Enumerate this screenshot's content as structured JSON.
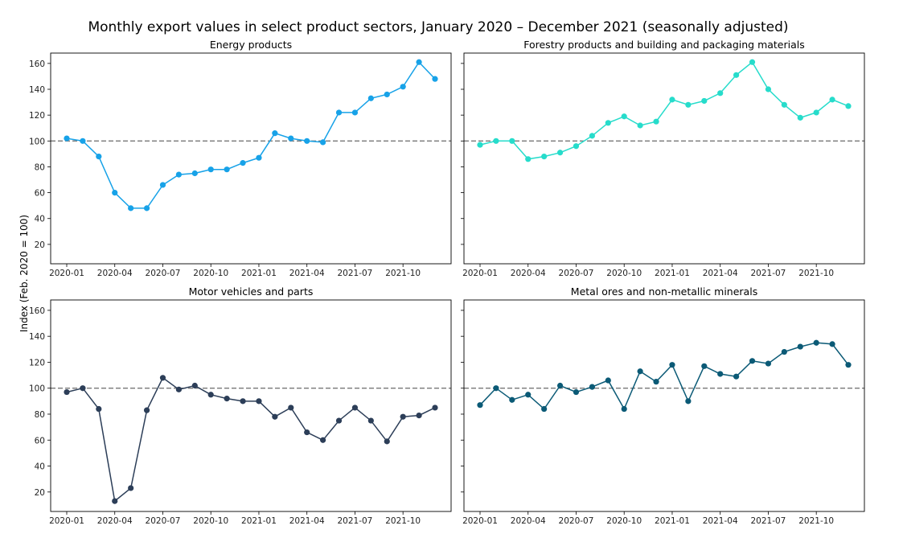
{
  "chart_data": {
    "type": "line",
    "title": "Monthly export values in select product sectors, January 2020 – December 2021  (seasonally adjusted)",
    "ylabel": "Index (Feb. 2020 = 100)",
    "ylim": [
      5,
      168
    ],
    "yticks": [
      20,
      40,
      60,
      80,
      100,
      120,
      140,
      160
    ],
    "xticks": [
      "2020-01",
      "2020-04",
      "2020-07",
      "2020-10",
      "2021-01",
      "2021-04",
      "2021-07",
      "2021-10"
    ],
    "x": [
      "2020-01",
      "2020-02",
      "2020-03",
      "2020-04",
      "2020-05",
      "2020-06",
      "2020-07",
      "2020-08",
      "2020-09",
      "2020-10",
      "2020-11",
      "2020-12",
      "2021-01",
      "2021-02",
      "2021-03",
      "2021-04",
      "2021-05",
      "2021-06",
      "2021-07",
      "2021-08",
      "2021-09",
      "2021-10",
      "2021-11",
      "2021-12"
    ],
    "reference_line": 100,
    "grid": false,
    "layout": "2x2 shared y-axis",
    "panels": [
      {
        "title": "Energy products",
        "color": "#17a2e8",
        "values": [
          102,
          100,
          88,
          60,
          48,
          48,
          66,
          74,
          75,
          78,
          78,
          83,
          87,
          106,
          102,
          100,
          99,
          122,
          122,
          133,
          136,
          142,
          161,
          148
        ]
      },
      {
        "title": "Forestry products and building and packaging materials",
        "color": "#26dccb",
        "values": [
          97,
          100,
          100,
          86,
          88,
          91,
          96,
          104,
          114,
          119,
          112,
          115,
          132,
          128,
          131,
          137,
          151,
          161,
          140,
          128,
          118,
          122,
          132,
          127
        ]
      },
      {
        "title": "Motor vehicles and parts",
        "color": "#2c3e58",
        "values": [
          97,
          100,
          84,
          13,
          23,
          83,
          108,
          99,
          102,
          95,
          92,
          90,
          90,
          78,
          85,
          66,
          60,
          75,
          85,
          75,
          59,
          78,
          79,
          85
        ]
      },
      {
        "title": "Metal ores and non-metallic minerals",
        "color": "#0b5a76",
        "values": [
          87,
          100,
          91,
          95,
          84,
          102,
          97,
          101,
          106,
          84,
          113,
          105,
          118,
          90,
          117,
          111,
          109,
          121,
          119,
          128,
          132,
          135,
          134,
          118
        ]
      }
    ]
  }
}
